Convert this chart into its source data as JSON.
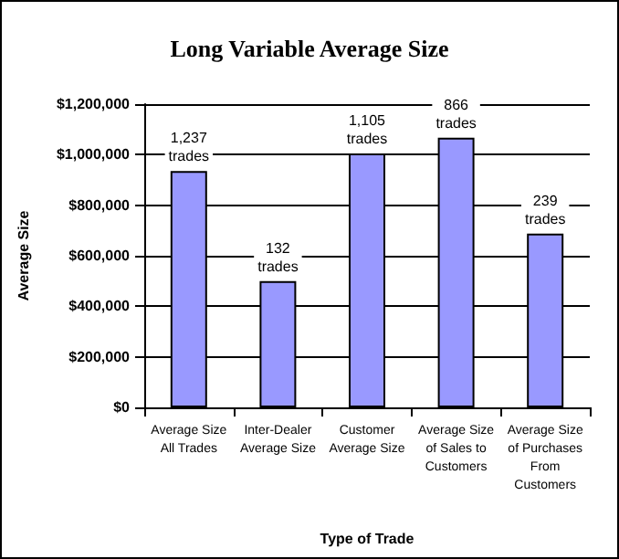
{
  "chart_data": {
    "type": "bar",
    "title": "Long Variable Average Size",
    "xlabel": "Type of Trade",
    "ylabel": "Average Size",
    "categories": [
      "Average Size\nAll Trades",
      "Inter-Dealer\nAverage Size",
      "Customer\nAverage Size",
      "Average Size\nof Sales to\nCustomers",
      "Average Size\nof Purchases\nFrom\nCustomers"
    ],
    "values": [
      935000,
      500000,
      1005000,
      1067000,
      688000
    ],
    "annotations": [
      {
        "text": "1,237\ntrades",
        "x": "Average Size\nAll Trades",
        "y": 935000
      },
      {
        "text": "132\ntrades",
        "x": "Inter-Dealer\nAverage Size",
        "y": 500000
      },
      {
        "text": "1,105\ntrades",
        "x": "Customer\nAverage Size",
        "y": 1005000
      },
      {
        "text": "866\ntrades",
        "x": "Average Size\nof Sales to\nCustomers",
        "y": 1067000
      },
      {
        "text": "239\ntrades",
        "x": "Average Size\nof Purchases\nFrom\nCustomers",
        "y": 688000
      }
    ],
    "color": "#9999ff",
    "ylim": [
      0,
      1200000
    ],
    "yticks": [
      {
        "value": 0,
        "label": "$0"
      },
      {
        "value": 200000,
        "label": "$200,000"
      },
      {
        "value": 400000,
        "label": "$400,000"
      },
      {
        "value": 600000,
        "label": "$600,000"
      },
      {
        "value": 800000,
        "label": "$800,000"
      },
      {
        "value": 1000000,
        "label": "$1,000,000"
      },
      {
        "value": 1200000,
        "label": "$1,200,000"
      }
    ],
    "grid": "y"
  }
}
